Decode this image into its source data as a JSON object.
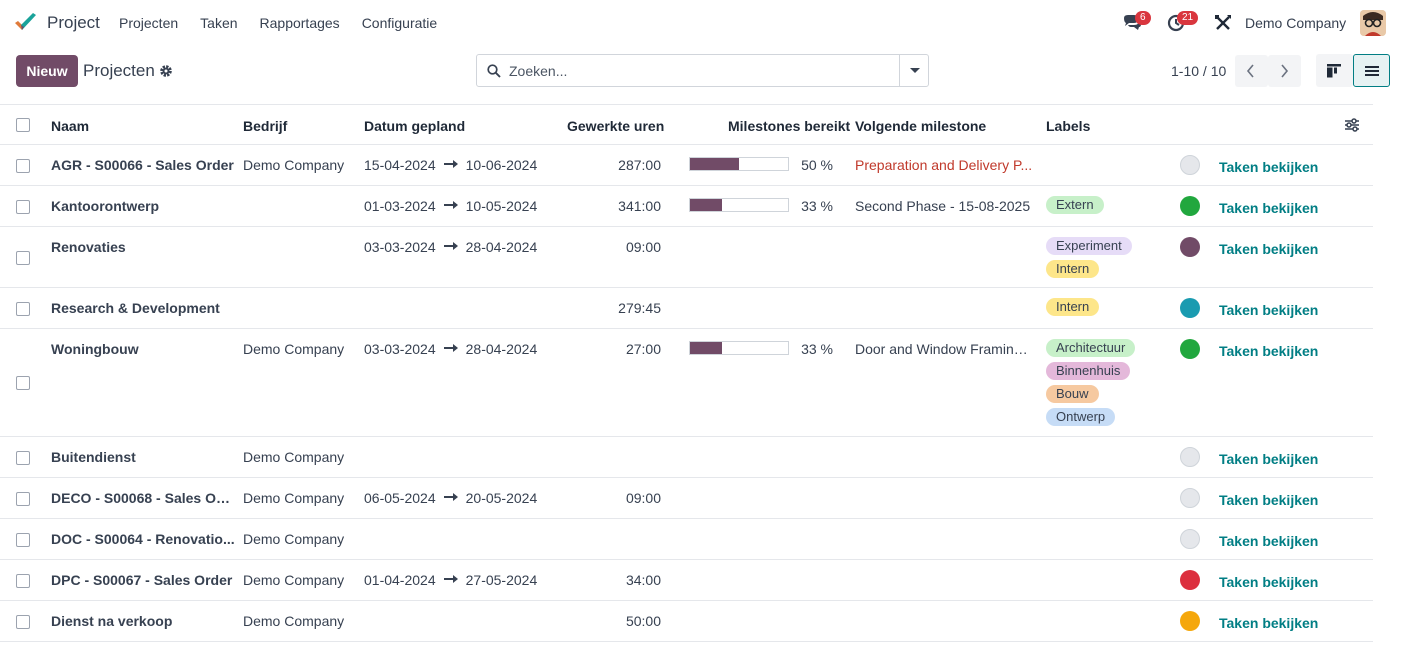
{
  "navbar": {
    "app_name": "Project",
    "menu": [
      "Projecten",
      "Taken",
      "Rapportages",
      "Configuratie"
    ],
    "messages_count": "6",
    "activities_count": "21",
    "company": "Demo Company"
  },
  "control": {
    "new_label": "Nieuw",
    "breadcrumb": "Projecten",
    "search_placeholder": "Zoeken...",
    "pager": "1-10 / 10"
  },
  "table": {
    "headers": {
      "name": "Naam",
      "company": "Bedrijf",
      "date": "Datum gepland",
      "hours": "Gewerkte uren",
      "milestones_reached": "Milestones bereikt",
      "next_milestone": "Volgende milestone",
      "labels": "Labels"
    },
    "action_label": "Taken bekijken",
    "rows": [
      {
        "name": "AGR - S00066 - Sales Order",
        "company": "Demo Company",
        "start": "15-04-2024",
        "end": "10-06-2024",
        "hours": "287:00",
        "progress": 50,
        "pct": "50 %",
        "milestone": "Preparation and Delivery P...",
        "late": true,
        "tags": [],
        "color": "#e5e7eb"
      },
      {
        "name": "Kantoorontwerp",
        "company": "",
        "start": "01-03-2024",
        "end": "10-05-2024",
        "hours": "341:00",
        "progress": 33,
        "pct": "33 %",
        "milestone": "Second Phase - 15-08-2025",
        "late": false,
        "tags": [
          {
            "label": "Extern",
            "color": "#c7f0c9"
          }
        ],
        "color": "#21a73e"
      },
      {
        "name": "Renovaties",
        "company": "",
        "start": "03-03-2024",
        "end": "28-04-2024",
        "hours": "09:00",
        "progress": null,
        "pct": "",
        "milestone": "",
        "late": false,
        "tags": [
          {
            "label": "Experiment",
            "color": "#e6dcf7"
          },
          {
            "label": "Intern",
            "color": "#fde68a"
          }
        ],
        "color": "#714b67"
      },
      {
        "name": "Research & Development",
        "company": "",
        "start": "",
        "end": "",
        "hours": "279:45",
        "progress": null,
        "pct": "",
        "milestone": "",
        "late": false,
        "tags": [
          {
            "label": "Intern",
            "color": "#fde68a"
          }
        ],
        "color": "#1a9bb0"
      },
      {
        "name": "Woningbouw",
        "company": "Demo Company",
        "start": "03-03-2024",
        "end": "28-04-2024",
        "hours": "27:00",
        "progress": 33,
        "pct": "33 %",
        "milestone": "Door and Window Framing ...",
        "late": false,
        "tags": [
          {
            "label": "Architectuur",
            "color": "#c7f0c9"
          },
          {
            "label": "Binnenhuis",
            "color": "#e4b8da"
          },
          {
            "label": "Bouw",
            "color": "#f6c9a0"
          },
          {
            "label": "Ontwerp",
            "color": "#c6dcf6"
          }
        ],
        "color": "#21a73e"
      },
      {
        "name": "Buitendienst",
        "company": "Demo Company",
        "start": "",
        "end": "",
        "hours": "",
        "progress": null,
        "pct": "",
        "milestone": "",
        "late": false,
        "tags": [],
        "color": "#e5e7eb"
      },
      {
        "name": "DECO - S00068 - Sales Ord...",
        "company": "Demo Company",
        "start": "06-05-2024",
        "end": "20-05-2024",
        "hours": "09:00",
        "progress": null,
        "pct": "",
        "milestone": "",
        "late": false,
        "tags": [],
        "color": "#e5e7eb"
      },
      {
        "name": "DOC - S00064 - Renovatio...",
        "company": "Demo Company",
        "start": "",
        "end": "",
        "hours": "",
        "progress": null,
        "pct": "",
        "milestone": "",
        "late": false,
        "tags": [],
        "color": "#e5e7eb"
      },
      {
        "name": "DPC - S00067 - Sales Order",
        "company": "Demo Company",
        "start": "01-04-2024",
        "end": "27-05-2024",
        "hours": "34:00",
        "progress": null,
        "pct": "",
        "milestone": "",
        "late": false,
        "tags": [],
        "color": "#dc2f3e"
      },
      {
        "name": "Dienst na verkoop",
        "company": "Demo Company",
        "start": "",
        "end": "",
        "hours": "50:00",
        "progress": null,
        "pct": "",
        "milestone": "",
        "late": false,
        "tags": [],
        "color": "#f5a70b"
      }
    ]
  }
}
